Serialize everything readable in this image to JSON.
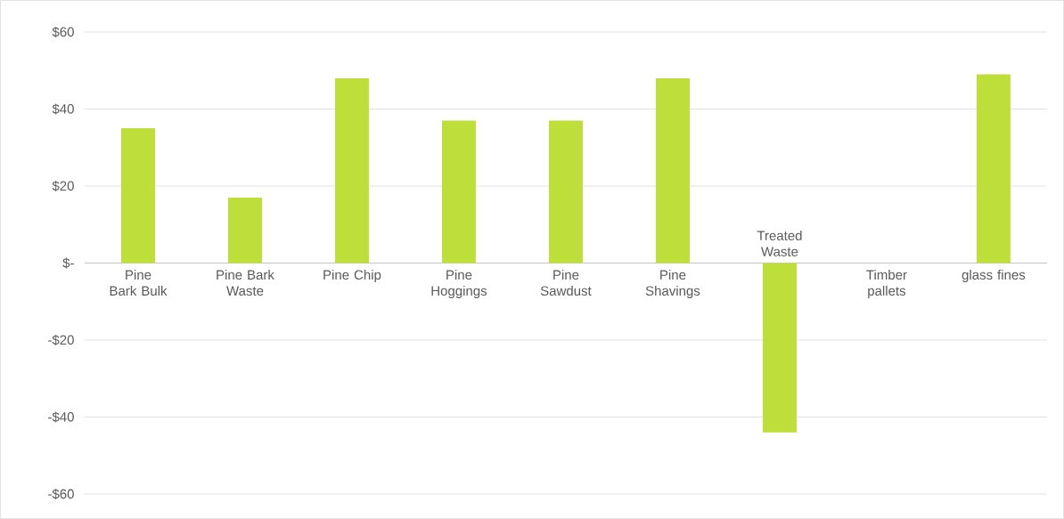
{
  "chart_data": {
    "type": "bar",
    "categories": [
      "Pine Bark Bulk",
      "Pine Bark Waste",
      "Pine Chip",
      "Pine Hoggings",
      "Pine Sawdust",
      "Pine Shavings",
      "Treated Waste",
      "Timber pallets",
      "glass fines"
    ],
    "values": [
      35,
      17,
      48,
      37,
      37,
      48,
      -44,
      0,
      49
    ],
    "color": "#bedf3a",
    "ylim": [
      -60,
      60
    ],
    "yticks": [
      {
        "value": -60,
        "label": "-$60"
      },
      {
        "value": -40,
        "label": "-$40"
      },
      {
        "value": -20,
        "label": "-$20"
      },
      {
        "value": 0,
        "label": "$-"
      },
      {
        "value": 20,
        "label": "$20"
      },
      {
        "value": 40,
        "label": "$40"
      },
      {
        "value": 60,
        "label": "$60"
      }
    ],
    "grid": "y"
  }
}
